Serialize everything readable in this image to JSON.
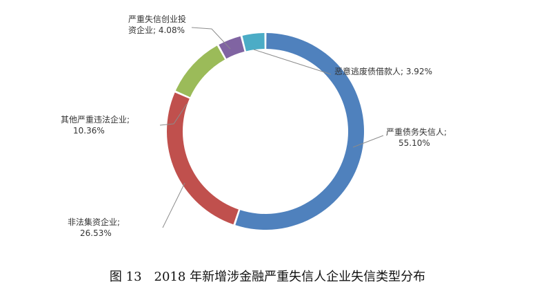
{
  "chart_data": {
    "type": "pie",
    "donut": true,
    "caption": "图 13　2018 年新增涉金融严重失信人企业失信类型分布",
    "slices": [
      {
        "label_lines": [
          "严重债务失信人;",
          "55.10%"
        ],
        "value": 55.1,
        "color": "#4F81BD"
      },
      {
        "label_lines": [
          "非法集资企业;",
          "26.53%"
        ],
        "value": 26.53,
        "color": "#C0504D"
      },
      {
        "label_lines": [
          "其他严重违法企业;",
          "10.36%"
        ],
        "value": 10.36,
        "color": "#9BBB59"
      },
      {
        "label_lines": [
          "严重失信创业投",
          "资企业; 4.08%"
        ],
        "value": 4.08,
        "color": "#8064A2"
      },
      {
        "label_lines": [
          "恶意逃废债借款人; 3.92%"
        ],
        "value": 3.92,
        "color": "#4BACC6"
      }
    ]
  }
}
